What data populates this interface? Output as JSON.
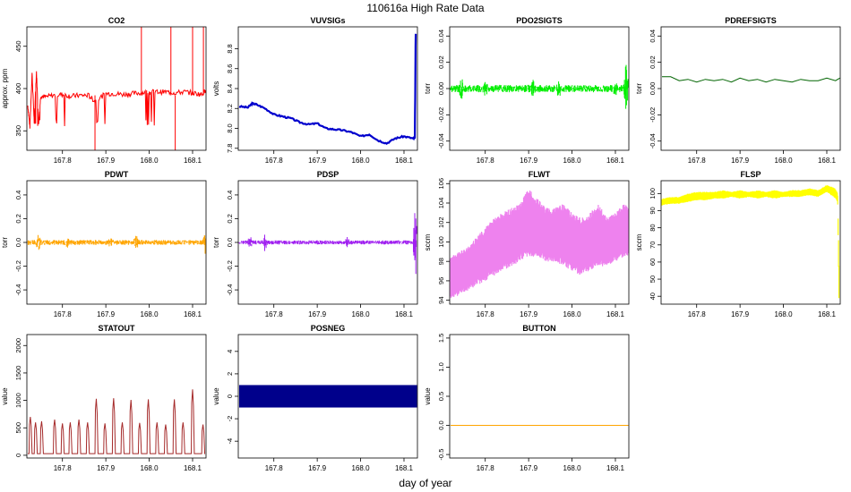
{
  "figure": {
    "title": "110616a   High Rate Data",
    "xlabel": "day of year"
  },
  "chart_data": [
    {
      "name": "CO2",
      "type": "line",
      "title": "CO2",
      "ylabel": "approx. ppm",
      "color": "#ff0000",
      "xlim": [
        167.718,
        168.131
      ],
      "ylim": [
        327,
        473
      ],
      "xticks": [
        "167.8",
        "167.9",
        "168.0",
        "168.1"
      ],
      "yticks": [
        350,
        400,
        450
      ],
      "x": [
        167.72,
        167.725,
        167.73,
        167.735,
        167.74,
        167.745,
        167.75,
        167.76,
        167.78,
        167.8,
        167.82,
        167.84,
        167.86,
        167.875,
        167.9,
        167.92,
        167.94,
        167.96,
        167.982,
        168.0,
        168.02,
        168.04,
        168.06,
        168.08,
        168.1,
        168.12,
        168.13
      ],
      "y": [
        380,
        355,
        418,
        360,
        420,
        358,
        392,
        390,
        392,
        393,
        391,
        392,
        392,
        385,
        394,
        394,
        393,
        394,
        395,
        396,
        396,
        396,
        395,
        396,
        395,
        393,
        398
      ],
      "annotations": "brief spikes to top of axis near 167.98, 168.05, 168.06 and 168.1; drops near 167.875 and 168.06"
    },
    {
      "name": "VUVSIGs",
      "type": "line",
      "title": "VUVSIGs",
      "ylabel": "volts",
      "color": "#0000cd",
      "xlim": [
        167.718,
        168.131
      ],
      "ylim": [
        7.78,
        9.02
      ],
      "xticks": [
        "167.8",
        "167.9",
        "168.0",
        "168.1"
      ],
      "yticks": [
        "7.8",
        "8.0",
        "8.2",
        "8.4",
        "8.6",
        "8.8"
      ],
      "x": [
        167.72,
        167.74,
        167.75,
        167.76,
        167.78,
        167.8,
        167.82,
        167.84,
        167.86,
        167.88,
        167.9,
        167.92,
        167.94,
        167.96,
        167.98,
        168.0,
        168.02,
        168.04,
        168.06,
        168.08,
        168.1,
        168.12,
        168.125,
        168.127
      ],
      "y": [
        8.22,
        8.21,
        8.25,
        8.24,
        8.2,
        8.14,
        8.12,
        8.1,
        8.06,
        8.04,
        8.05,
        8.0,
        7.99,
        7.98,
        7.96,
        7.92,
        7.94,
        7.88,
        7.85,
        7.9,
        7.92,
        7.9,
        7.9,
        8.95
      ]
    },
    {
      "name": "PDO2SIGTS",
      "type": "line",
      "title": "PDO2SIGTS",
      "ylabel": "torr",
      "color": "#00ee00",
      "xlim": [
        167.718,
        168.131
      ],
      "ylim": [
        -0.047,
        0.047
      ],
      "xticks": [
        "167.8",
        "167.9",
        "168.0",
        "168.1"
      ],
      "yticks": [
        "-0.04",
        "-0.02",
        "0.00",
        "0.02",
        "0.04"
      ],
      "baseline": 0.0,
      "noise": 0.004,
      "bursts": [
        {
          "x": 167.745,
          "amp": 0.012
        },
        {
          "x": 167.8,
          "amp": 0.006
        },
        {
          "x": 167.91,
          "amp": 0.006
        },
        {
          "x": 167.97,
          "amp": 0.008
        },
        {
          "x": 168.1,
          "amp": 0.006
        },
        {
          "x": 168.125,
          "amp": 0.03
        }
      ]
    },
    {
      "name": "PDREFSIGTS",
      "type": "line",
      "title": "PDREFSIGTS",
      "ylabel": "torr",
      "color": "#006400",
      "xlim": [
        167.718,
        168.131
      ],
      "ylim": [
        -0.047,
        0.047
      ],
      "xticks": [
        "167.8",
        "167.9",
        "168.0",
        "168.1"
      ],
      "yticks": [
        "-0.04",
        "-0.02",
        "0.00",
        "0.02",
        "0.04"
      ],
      "x": [
        167.72,
        167.74,
        167.76,
        167.78,
        167.8,
        167.82,
        167.84,
        167.86,
        167.88,
        167.9,
        167.92,
        167.94,
        167.96,
        167.98,
        168.0,
        168.02,
        168.04,
        168.06,
        168.08,
        168.1,
        168.12,
        168.13
      ],
      "y": [
        0.009,
        0.009,
        0.006,
        0.007,
        0.005,
        0.007,
        0.006,
        0.007,
        0.005,
        0.008,
        0.006,
        0.007,
        0.005,
        0.007,
        0.006,
        0.005,
        0.007,
        0.006,
        0.006,
        0.008,
        0.006,
        0.008
      ]
    },
    {
      "name": "PDWT",
      "type": "line",
      "title": "PDWT",
      "ylabel": "torr",
      "color": "#ffa500",
      "xlim": [
        167.718,
        168.131
      ],
      "ylim": [
        -0.52,
        0.52
      ],
      "xticks": [
        "167.8",
        "167.9",
        "168.0",
        "168.1"
      ],
      "yticks": [
        "-0.4",
        "-0.2",
        "0.0",
        "0.2",
        "0.4"
      ],
      "baseline": 0.0,
      "noise": 0.03,
      "bursts": [
        {
          "x": 167.745,
          "amp": 0.12
        },
        {
          "x": 167.81,
          "amp": 0.06
        },
        {
          "x": 167.91,
          "amp": 0.06
        },
        {
          "x": 167.97,
          "amp": 0.08
        },
        {
          "x": 168.13,
          "amp": 0.2
        }
      ]
    },
    {
      "name": "PDSP",
      "type": "line",
      "title": "PDSP",
      "ylabel": "torr",
      "color": "#a020f0",
      "xlim": [
        167.718,
        168.131
      ],
      "ylim": [
        -0.52,
        0.52
      ],
      "xticks": [
        "167.8",
        "167.9",
        "168.0",
        "168.1"
      ],
      "yticks": [
        "-0.4",
        "-0.2",
        "0.0",
        "0.2",
        "0.4"
      ],
      "baseline": 0.0,
      "noise": 0.025,
      "bursts": [
        {
          "x": 167.745,
          "amp": 0.06
        },
        {
          "x": 167.78,
          "amp": 0.1
        },
        {
          "x": 167.97,
          "amp": 0.06
        },
        {
          "x": 168.126,
          "amp": 0.5
        }
      ]
    },
    {
      "name": "FLWT",
      "type": "band",
      "title": "FLWT",
      "ylabel": "sccm",
      "color": "#ee82ee",
      "xlim": [
        167.718,
        168.131
      ],
      "ylim": [
        93.6,
        106.3
      ],
      "xticks": [
        "167.8",
        "167.9",
        "168.0",
        "168.1"
      ],
      "yticks": [
        94,
        96,
        98,
        100,
        102,
        104,
        106
      ],
      "x": [
        167.72,
        167.74,
        167.76,
        167.78,
        167.8,
        167.82,
        167.84,
        167.86,
        167.88,
        167.9,
        167.92,
        167.94,
        167.96,
        167.98,
        168.0,
        168.02,
        168.04,
        168.06,
        168.08,
        168.1,
        168.12,
        168.13
      ],
      "low": [
        94.2,
        94.5,
        95.0,
        95.5,
        96.0,
        96.5,
        97.0,
        97.5,
        98.0,
        98.5,
        98.5,
        98.0,
        98.0,
        97.5,
        97.0,
        96.5,
        97.0,
        97.5,
        97.5,
        98.0,
        98.5,
        98.5
      ],
      "high": [
        98.5,
        99.0,
        99.5,
        100.5,
        101.5,
        102.5,
        103.0,
        103.5,
        104.0,
        105.5,
        104.5,
        103.5,
        103.5,
        104.0,
        103.0,
        102.5,
        103.0,
        104.0,
        102.5,
        103.0,
        104.0,
        103.5
      ]
    },
    {
      "name": "FLSP",
      "type": "band",
      "title": "FLSP",
      "ylabel": "sccm",
      "color": "#ffff00",
      "xlim": [
        167.718,
        168.131
      ],
      "ylim": [
        35.4,
        107.5
      ],
      "xticks": [
        "167.8",
        "167.9",
        "168.0",
        "168.1"
      ],
      "yticks": [
        40,
        50,
        60,
        70,
        80,
        90,
        100
      ],
      "x": [
        167.72,
        167.74,
        167.76,
        167.78,
        167.8,
        167.82,
        167.84,
        167.86,
        167.88,
        167.9,
        167.92,
        167.94,
        167.96,
        167.98,
        168.0,
        168.02,
        168.04,
        168.06,
        168.08,
        168.1,
        168.12,
        168.125,
        168.128
      ],
      "low": [
        93,
        94,
        94,
        95,
        96,
        96,
        97,
        97,
        98,
        97,
        98,
        97,
        98,
        97,
        98,
        98,
        98,
        99,
        98,
        101,
        97,
        95,
        38
      ],
      "high": [
        97,
        98,
        98,
        100,
        101,
        101,
        101,
        102,
        101,
        102,
        101,
        102,
        101,
        102,
        101,
        102,
        102,
        103,
        102,
        105,
        103,
        100,
        60
      ]
    },
    {
      "name": "STATOUT",
      "type": "line",
      "title": "STATOUT",
      "ylabel": "value",
      "color": "#a52a2a",
      "xlim": [
        167.718,
        168.131
      ],
      "ylim": [
        -50,
        2200
      ],
      "xticks": [
        "167.8",
        "167.9",
        "168.0",
        "168.1"
      ],
      "yticks": [
        0,
        500,
        1000,
        1500,
        2000
      ],
      "pulses": [
        {
          "x": 167.726,
          "h": 700
        },
        {
          "x": 167.738,
          "h": 600
        },
        {
          "x": 167.752,
          "h": 620
        },
        {
          "x": 167.782,
          "h": 650
        },
        {
          "x": 167.8,
          "h": 580
        },
        {
          "x": 167.818,
          "h": 600
        },
        {
          "x": 167.838,
          "h": 650
        },
        {
          "x": 167.858,
          "h": 600
        },
        {
          "x": 167.878,
          "h": 1030
        },
        {
          "x": 167.898,
          "h": 580
        },
        {
          "x": 167.918,
          "h": 1040
        },
        {
          "x": 167.938,
          "h": 600
        },
        {
          "x": 167.958,
          "h": 1010
        },
        {
          "x": 167.978,
          "h": 590
        },
        {
          "x": 167.998,
          "h": 1020
        },
        {
          "x": 168.018,
          "h": 600
        },
        {
          "x": 168.038,
          "h": 560
        },
        {
          "x": 168.058,
          "h": 1020
        },
        {
          "x": 168.078,
          "h": 600
        },
        {
          "x": 168.1,
          "h": 1200
        },
        {
          "x": 168.124,
          "h": 560
        }
      ]
    },
    {
      "name": "POSNEG",
      "type": "area",
      "title": "POSNEG",
      "ylabel": "value",
      "color": "#00008b",
      "xlim": [
        167.718,
        168.131
      ],
      "ylim": [
        -5.5,
        5.5
      ],
      "xticks": [
        "167.8",
        "167.9",
        "168.0",
        "168.1"
      ],
      "yticks": [
        -4,
        -2,
        0,
        2,
        4
      ],
      "xrange": [
        167.72,
        168.13
      ],
      "yrange": [
        -1,
        1
      ]
    },
    {
      "name": "BUTTON",
      "type": "line",
      "title": "BUTTON",
      "ylabel": "value",
      "color": "#ffa500",
      "xlim": [
        167.718,
        168.131
      ],
      "ylim": [
        -0.56,
        1.56
      ],
      "xticks": [
        "167.8",
        "167.9",
        "168.0",
        "168.1"
      ],
      "yticks": [
        "-0.5",
        "0.0",
        "0.5",
        "1.0",
        "1.5"
      ],
      "x": [
        167.72,
        168.13
      ],
      "y": [
        0,
        0
      ]
    }
  ]
}
